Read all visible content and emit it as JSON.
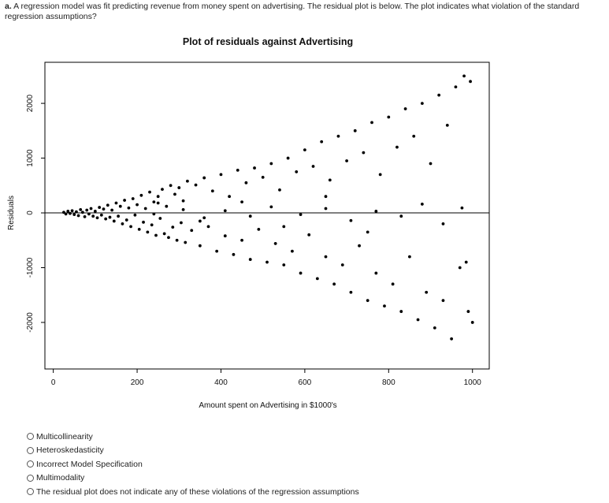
{
  "question": {
    "label": "a.",
    "text": "A regression model was fit predicting revenue from money spent on advertising.  The residual plot is below.  The plot indicates what violation of the standard regression assumptions?"
  },
  "options": [
    "Multicollinearity",
    "Heteroskedasticity",
    "Incorrect Model Specification",
    "Multimodality",
    "The residual plot does not indicate any of these violations of the regression assumptions"
  ],
  "chart_data": {
    "type": "scatter",
    "title": "Plot of residuals against Advertising",
    "xlabel": "Amount spent on Advertising in $1000's",
    "ylabel": "Residuals",
    "xlim": [
      -20,
      1040
    ],
    "ylim": [
      -2850,
      2750
    ],
    "xticks": [
      0,
      200,
      400,
      600,
      800,
      1000
    ],
    "yticks": [
      -2000,
      -1000,
      0,
      1000,
      2000
    ],
    "reference_line_y": 0,
    "grid": false,
    "legend": "none",
    "pattern": "residual spread widens as advertising spend increases (fan shape)",
    "points": [
      [
        25,
        10
      ],
      [
        30,
        -20
      ],
      [
        35,
        30
      ],
      [
        40,
        -10
      ],
      [
        45,
        40
      ],
      [
        50,
        -30
      ],
      [
        55,
        20
      ],
      [
        60,
        -50
      ],
      [
        65,
        60
      ],
      [
        70,
        10
      ],
      [
        75,
        -70
      ],
      [
        80,
        50
      ],
      [
        85,
        -20
      ],
      [
        90,
        80
      ],
      [
        95,
        -60
      ],
      [
        100,
        30
      ],
      [
        105,
        -90
      ],
      [
        110,
        100
      ],
      [
        115,
        -40
      ],
      [
        120,
        70
      ],
      [
        125,
        -110
      ],
      [
        130,
        140
      ],
      [
        135,
        -80
      ],
      [
        140,
        50
      ],
      [
        145,
        -150
      ],
      [
        150,
        180
      ],
      [
        155,
        -60
      ],
      [
        160,
        120
      ],
      [
        165,
        -200
      ],
      [
        170,
        230
      ],
      [
        175,
        -130
      ],
      [
        180,
        90
      ],
      [
        185,
        -250
      ],
      [
        190,
        260
      ],
      [
        195,
        -40
      ],
      [
        200,
        150
      ],
      [
        205,
        -300
      ],
      [
        210,
        320
      ],
      [
        215,
        -170
      ],
      [
        220,
        80
      ],
      [
        225,
        -350
      ],
      [
        230,
        380
      ],
      [
        235,
        -220
      ],
      [
        240,
        200
      ],
      [
        245,
        -410
      ],
      [
        250,
        300
      ],
      [
        255,
        -100
      ],
      [
        260,
        430
      ],
      [
        265,
        -380
      ],
      [
        270,
        120
      ],
      [
        275,
        -450
      ],
      [
        280,
        500
      ],
      [
        285,
        -260
      ],
      [
        290,
        340
      ],
      [
        295,
        -500
      ],
      [
        300,
        460
      ],
      [
        305,
        -180
      ],
      [
        310,
        220
      ],
      [
        315,
        -540
      ],
      [
        320,
        580
      ],
      [
        330,
        -320
      ],
      [
        340,
        510
      ],
      [
        350,
        -600
      ],
      [
        360,
        640
      ],
      [
        370,
        -250
      ],
      [
        380,
        400
      ],
      [
        390,
        -700
      ],
      [
        400,
        700
      ],
      [
        410,
        -420
      ],
      [
        420,
        300
      ],
      [
        430,
        -760
      ],
      [
        440,
        780
      ],
      [
        450,
        -500
      ],
      [
        460,
        550
      ],
      [
        470,
        -850
      ],
      [
        480,
        820
      ],
      [
        490,
        -300
      ],
      [
        500,
        650
      ],
      [
        510,
        -900
      ],
      [
        520,
        900
      ],
      [
        530,
        -560
      ],
      [
        540,
        420
      ],
      [
        550,
        -950
      ],
      [
        560,
        1000
      ],
      [
        570,
        -700
      ],
      [
        580,
        750
      ],
      [
        590,
        -1100
      ],
      [
        600,
        1150
      ],
      [
        610,
        -400
      ],
      [
        620,
        850
      ],
      [
        630,
        -1200
      ],
      [
        640,
        1300
      ],
      [
        650,
        -800
      ],
      [
        660,
        600
      ],
      [
        670,
        -1300
      ],
      [
        680,
        1400
      ],
      [
        690,
        -950
      ],
      [
        700,
        950
      ],
      [
        710,
        -1450
      ],
      [
        720,
        1500
      ],
      [
        730,
        -600
      ],
      [
        740,
        1100
      ],
      [
        750,
        -1600
      ],
      [
        760,
        1650
      ],
      [
        770,
        -1100
      ],
      [
        780,
        700
      ],
      [
        790,
        -1700
      ],
      [
        800,
        1750
      ],
      [
        810,
        -1300
      ],
      [
        820,
        1200
      ],
      [
        830,
        -1800
      ],
      [
        840,
        1900
      ],
      [
        850,
        -800
      ],
      [
        860,
        1400
      ],
      [
        870,
        -1950
      ],
      [
        880,
        2000
      ],
      [
        890,
        -1450
      ],
      [
        900,
        900
      ],
      [
        910,
        -2100
      ],
      [
        920,
        2150
      ],
      [
        930,
        -1600
      ],
      [
        940,
        1600
      ],
      [
        950,
        -2300
      ],
      [
        960,
        2300
      ],
      [
        970,
        -1000
      ],
      [
        980,
        2500
      ],
      [
        990,
        -1800
      ],
      [
        995,
        2400
      ],
      [
        1000,
        -2000
      ],
      [
        985,
        -900
      ],
      [
        240,
        -20
      ],
      [
        310,
        60
      ],
      [
        360,
        -90
      ],
      [
        410,
        40
      ],
      [
        470,
        -60
      ],
      [
        520,
        110
      ],
      [
        590,
        -30
      ],
      [
        650,
        80
      ],
      [
        710,
        -140
      ],
      [
        770,
        30
      ],
      [
        830,
        -60
      ],
      [
        880,
        160
      ],
      [
        930,
        -200
      ],
      [
        975,
        90
      ],
      [
        250,
        180
      ],
      [
        350,
        -150
      ],
      [
        450,
        200
      ],
      [
        550,
        -250
      ],
      [
        650,
        300
      ],
      [
        750,
        -350
      ]
    ]
  }
}
